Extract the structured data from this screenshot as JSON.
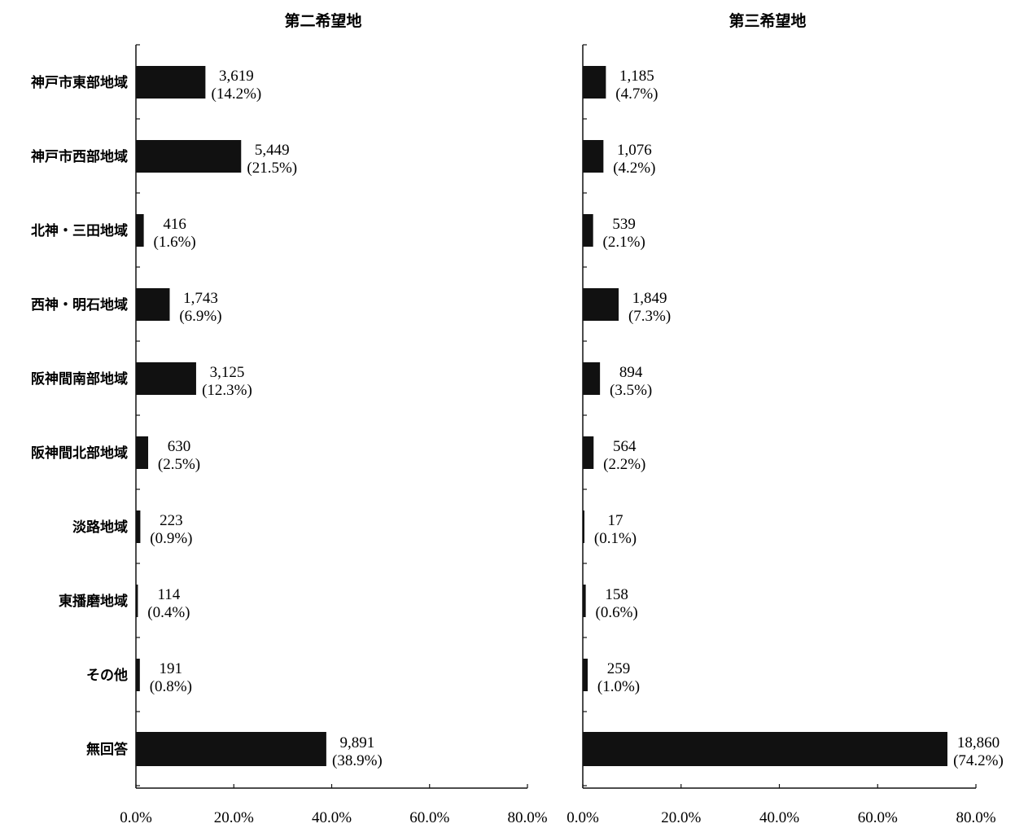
{
  "chart_data": [
    {
      "type": "bar",
      "orientation": "horizontal",
      "title": "第二希望地",
      "categories": [
        "神戸市東部地域",
        "神戸市西部地域",
        "北神・三田地域",
        "西神・明石地域",
        "阪神間南部地域",
        "阪神間北部地域",
        "淡路地域",
        "東播磨地域",
        "その他",
        "無回答"
      ],
      "values": [
        3619,
        5449,
        416,
        1743,
        3125,
        630,
        223,
        114,
        191,
        9891
      ],
      "value_labels": [
        "3,619",
        "5,449",
        "416",
        "1,743",
        "3,125",
        "630",
        "223",
        "114",
        "191",
        "9,891"
      ],
      "percents": [
        14.2,
        21.5,
        1.6,
        6.9,
        12.3,
        2.5,
        0.9,
        0.4,
        0.8,
        38.9
      ],
      "percent_labels": [
        "(14.2%)",
        "(21.5%)",
        "(1.6%)",
        "(6.9%)",
        "(12.3%)",
        "(2.5%)",
        "(0.9%)",
        "(0.4%)",
        "(0.8%)",
        "(38.9%)"
      ],
      "xlim": [
        0,
        80
      ],
      "xticks": [
        "0.0%",
        "20.0%",
        "40.0%",
        "60.0%",
        "80.0%"
      ],
      "bar_color": "#111111",
      "grid": false
    },
    {
      "type": "bar",
      "orientation": "horizontal",
      "title": "第三希望地",
      "categories": [
        "神戸市東部地域",
        "神戸市西部地域",
        "北神・三田地域",
        "西神・明石地域",
        "阪神間南部地域",
        "阪神間北部地域",
        "淡路地域",
        "東播磨地域",
        "その他",
        "無回答"
      ],
      "values": [
        1185,
        1076,
        539,
        1849,
        894,
        564,
        17,
        158,
        259,
        18860
      ],
      "value_labels": [
        "1,185",
        "1,076",
        "539",
        "1,849",
        "894",
        "564",
        "17",
        "158",
        "259",
        "18,860"
      ],
      "percents": [
        4.7,
        4.2,
        2.1,
        7.3,
        3.5,
        2.2,
        0.1,
        0.6,
        1.0,
        74.2
      ],
      "percent_labels": [
        "(4.7%)",
        "(4.2%)",
        "(2.1%)",
        "(7.3%)",
        "(3.5%)",
        "(2.2%)",
        "(0.1%)",
        "(0.6%)",
        "(1.0%)",
        "(74.2%)"
      ],
      "xlim": [
        0,
        80
      ],
      "xticks": [
        "0.0%",
        "20.0%",
        "40.0%",
        "60.0%",
        "80.0%"
      ],
      "bar_color": "#111111",
      "grid": false
    }
  ]
}
